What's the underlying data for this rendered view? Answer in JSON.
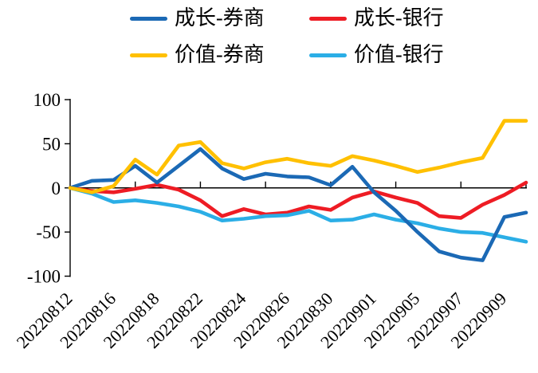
{
  "legend": {
    "items": [
      {
        "label": "成长-券商",
        "color": "#1B69B5"
      },
      {
        "label": "成长-银行",
        "color": "#EE1C24"
      },
      {
        "label": "价值-券商",
        "color": "#FFC000"
      },
      {
        "label": "价值-银行",
        "color": "#2BAEE6"
      }
    ]
  },
  "chart_data": {
    "type": "line",
    "title": "",
    "xlabel": "",
    "ylabel": "",
    "ylim": [
      -100,
      100
    ],
    "y_ticks": [
      100,
      50,
      0,
      -50,
      -100
    ],
    "grid": false,
    "legend_position": "top",
    "x": [
      "20220812",
      "20220815",
      "20220816",
      "20220817",
      "20220818",
      "20220819",
      "20220822",
      "20220823",
      "20220824",
      "20220825",
      "20220826",
      "20220829",
      "20220830",
      "20220831",
      "20220901",
      "20220902",
      "20220905",
      "20220906",
      "20220907",
      "20220908",
      "20220909",
      "20220913"
    ],
    "x_tick_labels": [
      "20220812",
      "20220816",
      "20220818",
      "20220822",
      "20220824",
      "20220826",
      "20220830",
      "20220901",
      "20220905",
      "20220907",
      "20220909"
    ],
    "label_every": 2,
    "x_axis_tick_every": 3,
    "series": [
      {
        "name": "成长-券商",
        "color": "#1B69B5",
        "values": [
          0,
          8,
          9,
          25,
          6,
          25,
          44,
          22,
          10,
          16,
          13,
          12,
          3,
          24,
          -5,
          -26,
          -50,
          -72,
          -79,
          -82,
          -33,
          -28
        ]
      },
      {
        "name": "成长-银行",
        "color": "#EE1C24",
        "values": [
          0,
          -3.5,
          -5,
          -1,
          3.5,
          -2,
          -14,
          -32,
          -24,
          -30,
          -28,
          -21,
          -25,
          -11,
          -4,
          -11,
          -17,
          -32,
          -34,
          -19,
          -8,
          6
        ]
      },
      {
        "name": "价值-券商",
        "color": "#FFC000",
        "values": [
          0,
          -5,
          2,
          32,
          15,
          48,
          52,
          28,
          22,
          29,
          33,
          28,
          25,
          36,
          31,
          25,
          18,
          23,
          29,
          34,
          76,
          76
        ]
      },
      {
        "name": "价值-银行",
        "color": "#2BAEE6",
        "values": [
          0,
          -6.5,
          -16,
          -14,
          -17,
          -21,
          -27,
          -37,
          -35,
          -32,
          -31,
          -26,
          -37,
          -36,
          -30,
          -36,
          -40,
          -46,
          -50,
          -51,
          -56,
          -61
        ]
      }
    ],
    "draw_order": [
      1,
      3,
      0,
      2
    ]
  }
}
